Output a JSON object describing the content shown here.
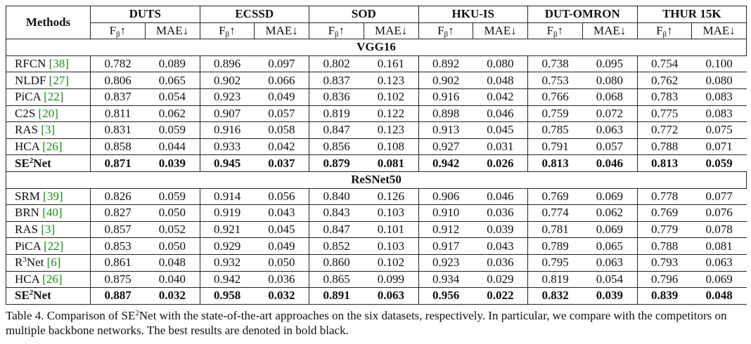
{
  "header": {
    "methods": "Methods",
    "datasets": [
      "DUTS",
      "ECSSD",
      "SOD",
      "HKU-IS",
      "DUT-OMRON",
      "THUR 15K"
    ],
    "metrics": [
      {
        "symbol": "F",
        "sub": "β",
        "arrow": "↑"
      },
      {
        "symbol": "MAE",
        "arrow": "↓"
      }
    ]
  },
  "sections": [
    {
      "title": "VGG16",
      "rows": [
        {
          "name": "RFCN",
          "ref": "[38]",
          "values": [
            "0.782",
            "0.089",
            "0.896",
            "0.097",
            "0.802",
            "0.161",
            "0.892",
            "0.080",
            "0.738",
            "0.095",
            "0.754",
            "0.100"
          ]
        },
        {
          "name": "NLDF",
          "ref": "[27]",
          "values": [
            "0.806",
            "0.065",
            "0.902",
            "0.066",
            "0.837",
            "0.123",
            "0.902",
            "0.048",
            "0.753",
            "0.080",
            "0.762",
            "0.080"
          ]
        },
        {
          "name": "PiCA",
          "ref": "[22]",
          "values": [
            "0.837",
            "0.054",
            "0.923",
            "0.049",
            "0.836",
            "0.102",
            "0.916",
            "0.042",
            "0.766",
            "0.068",
            "0.783",
            "0.083"
          ]
        },
        {
          "name": "C2S",
          "ref": "[20]",
          "values": [
            "0.811",
            "0.062",
            "0.907",
            "0.057",
            "0.819",
            "0.122",
            "0.898",
            "0.046",
            "0.759",
            "0.072",
            "0.775",
            "0.083"
          ]
        },
        {
          "name": "RAS",
          "ref": "[3]",
          "values": [
            "0.831",
            "0.059",
            "0.916",
            "0.058",
            "0.847",
            "0.123",
            "0.913",
            "0.045",
            "0.785",
            "0.063",
            "0.772",
            "0.075"
          ]
        },
        {
          "name": "HCA",
          "ref": "[26]",
          "values": [
            "0.858",
            "0.044",
            "0.933",
            "0.042",
            "0.856",
            "0.108",
            "0.927",
            "0.031",
            "0.791",
            "0.057",
            "0.788",
            "0.071"
          ]
        },
        {
          "name": "SE",
          "sup": "2",
          "suffix": "Net",
          "best": true,
          "values": [
            "0.871",
            "0.039",
            "0.945",
            "0.037",
            "0.879",
            "0.081",
            "0.942",
            "0.026",
            "0.813",
            "0.046",
            "0.813",
            "0.059"
          ]
        }
      ]
    },
    {
      "title": "ReSNet50",
      "rows": [
        {
          "name": "SRM",
          "ref": "[39]",
          "values": [
            "0.826",
            "0.059",
            "0.914",
            "0.056",
            "0.840",
            "0.126",
            "0.906",
            "0.046",
            "0.769",
            "0.069",
            "0.778",
            "0.077"
          ]
        },
        {
          "name": "BRN",
          "ref": "[40]",
          "values": [
            "0.827",
            "0.050",
            "0.919",
            "0.043",
            "0.843",
            "0.103",
            "0.910",
            "0.036",
            "0.774",
            "0.062",
            "0.769",
            "0.076"
          ]
        },
        {
          "name": "RAS",
          "ref": "[3]",
          "values": [
            "0.857",
            "0.052",
            "0.921",
            "0.045",
            "0.847",
            "0.101",
            "0.912",
            "0.039",
            "0.781",
            "0.069",
            "0.779",
            "0.078"
          ]
        },
        {
          "name": "PiCA",
          "ref": "[22]",
          "values": [
            "0.853",
            "0.050",
            "0.929",
            "0.049",
            "0.852",
            "0.103",
            "0.917",
            "0.043",
            "0.789",
            "0.065",
            "0.788",
            "0.081"
          ]
        },
        {
          "name": "R",
          "sup": "3",
          "suffix": "Net",
          "ref": "[6]",
          "values": [
            "0.861",
            "0.048",
            "0.932",
            "0.050",
            "0.860",
            "0.102",
            "0.923",
            "0.036",
            "0.795",
            "0.063",
            "0.793",
            "0.063"
          ]
        },
        {
          "name": "HCA",
          "ref": "[26]",
          "values": [
            "0.875",
            "0.040",
            "0.942",
            "0.036",
            "0.865",
            "0.099",
            "0.934",
            "0.029",
            "0.819",
            "0.054",
            "0.796",
            "0.069"
          ]
        },
        {
          "name": "SE",
          "sup": "2",
          "suffix": "Net",
          "best": true,
          "values": [
            "0.887",
            "0.032",
            "0.958",
            "0.032",
            "0.891",
            "0.063",
            "0.956",
            "0.022",
            "0.832",
            "0.039",
            "0.839",
            "0.048"
          ]
        }
      ]
    }
  ],
  "caption": {
    "before": "Table 4. Comparison of SE",
    "sup": "2",
    "after": "Net with the state-of-the-art approaches on the six datasets, respectively. In particular, we compare with the competitors on multiple backbone networks. The best results are denoted in bold black."
  }
}
